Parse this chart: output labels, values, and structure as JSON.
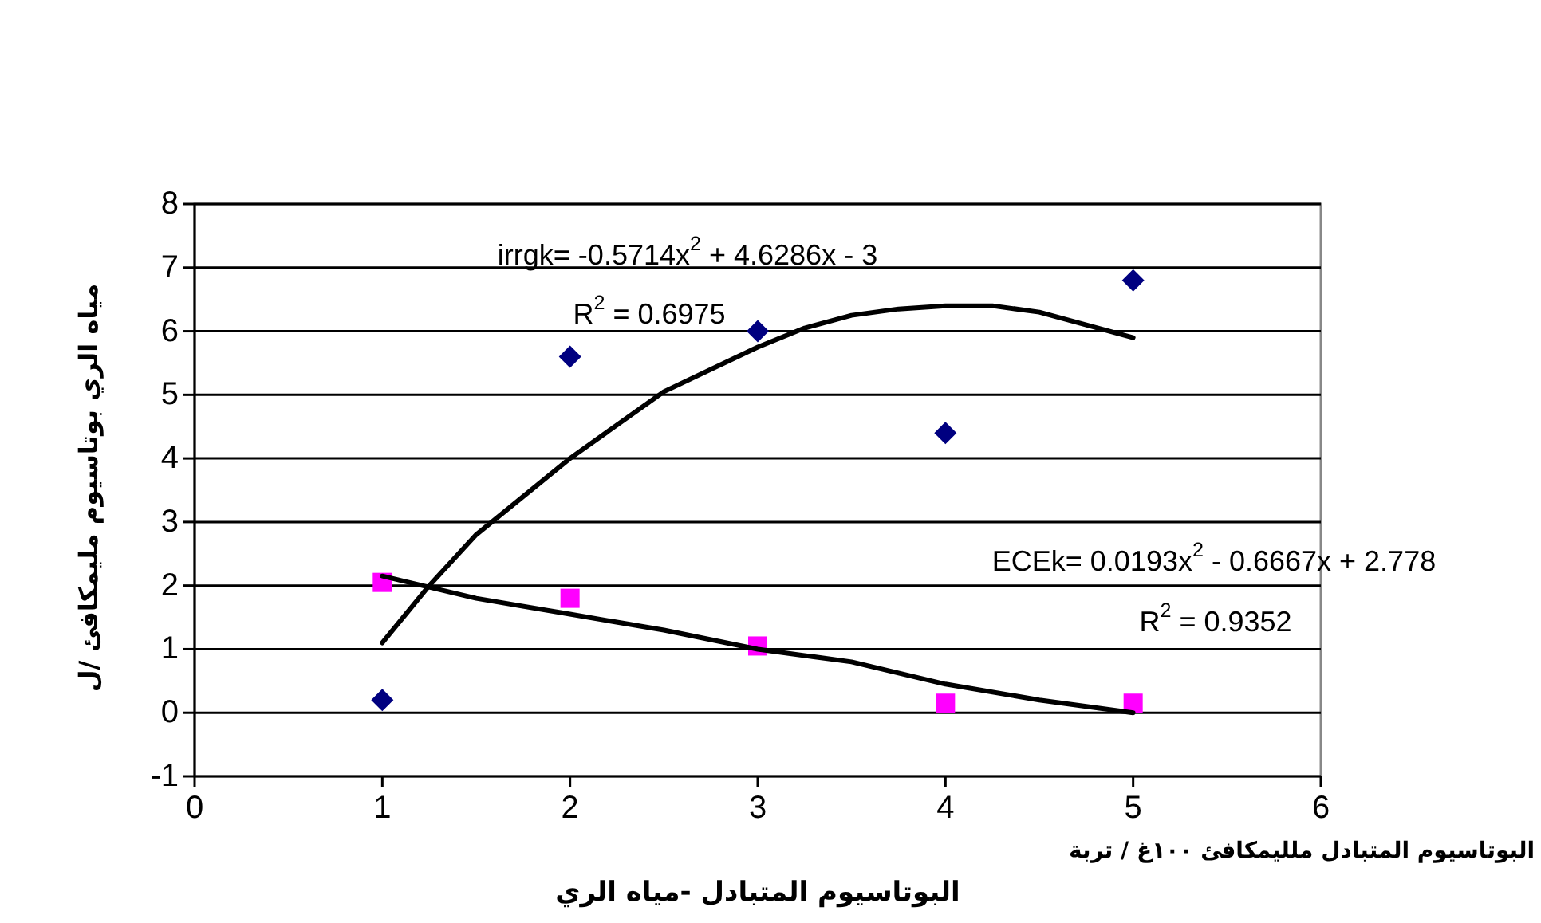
{
  "chart_data": {
    "type": "scatter",
    "xlabel": "البوتاسيوم المتبادل -مياه الري",
    "ylabel": "مياه الري بوتاسيوم مليمكافئ /ل",
    "xlim": [
      0,
      6
    ],
    "xticks": [
      0,
      1,
      2,
      3,
      4,
      5,
      6
    ],
    "ylim": [
      -1,
      8
    ],
    "yticks": [
      -1,
      0,
      1,
      2,
      3,
      4,
      5,
      6,
      7,
      8
    ],
    "grid": "y",
    "series": [
      {
        "marker": "diamond",
        "color": "#000080",
        "x": [
          1,
          2,
          3,
          4,
          5
        ],
        "values": [
          0.2,
          5.6,
          6.0,
          4.4,
          6.8
        ]
      },
      {
        "marker": "square",
        "color": "#ff00ff",
        "x": [
          1,
          2,
          3,
          4,
          5
        ],
        "values": [
          2.05,
          1.8,
          1.05,
          0.15,
          0.15
        ]
      },
      {
        "type": "line",
        "marker": "none",
        "color": "#000000",
        "x": [
          1,
          1.25,
          1.5,
          2,
          2.5,
          3,
          3.25,
          3.5,
          3.75,
          4,
          4.25,
          4.5,
          4.75,
          5
        ],
        "values": [
          1.1,
          2.0,
          2.8,
          4.0,
          5.05,
          5.75,
          6.05,
          6.25,
          6.35,
          6.4,
          6.4,
          6.3,
          6.1,
          5.9
        ]
      },
      {
        "type": "line",
        "marker": "none",
        "color": "#000000",
        "x": [
          1,
          1.5,
          2,
          2.5,
          3,
          3.5,
          4,
          4.5,
          5
        ],
        "values": [
          2.15,
          1.8,
          1.55,
          1.3,
          1.0,
          0.8,
          0.45,
          0.2,
          0.0
        ]
      }
    ],
    "annotations": [
      "irrgk= -0.5714x$^{2}$ + 4.6286x - 3",
      "R$^{2}$ = 0.6975",
      "ECEk= 0.0193x$^{2}$ - 0.6667x + 2.778",
      "R$^{2}$ = 0.9352",
      "البوتاسيوم المتبادل ملليمكافئ ١٠٠غ / تربة"
    ]
  }
}
